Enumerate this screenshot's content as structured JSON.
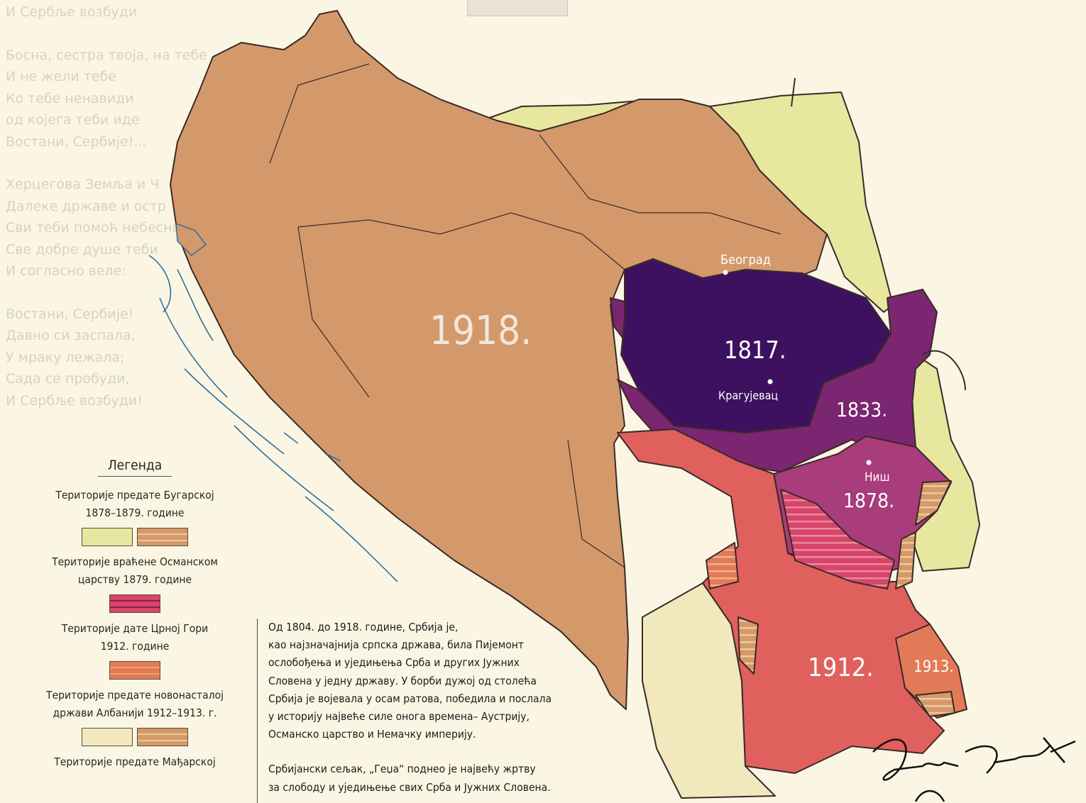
{
  "poem": {
    "lines_top": [
      "И Сербље возбуди"
    ],
    "stanza1": [
      "Босна, сестра твоја, на тебе",
      "И не жели тебе",
      "Ко тебе ненавиди",
      "од којега теби иде",
      "Востани, Сербије!..."
    ],
    "stanza2": [
      "Херцегова Земља и Ч",
      "Далеке државе и остр",
      "Сви теби помоћ небесни",
      "Све добре душе теби",
      "И согласно веле:"
    ],
    "stanza3": [
      "Востани, Сербије!",
      "Давно си заспала,",
      "У мраку лежала;",
      "Сада се пробуди,",
      "И Сербље возбуди!"
    ]
  },
  "map": {
    "regions": [
      {
        "label": "1918.",
        "color": "#d4996b"
      },
      {
        "label": "1817.",
        "color": "#3e1160"
      },
      {
        "label": "1833.",
        "color": "#7b2670"
      },
      {
        "label": "1878.",
        "color": "#a93c7a"
      },
      {
        "label": "1912.",
        "color": "#e0605e"
      },
      {
        "label": "1913.",
        "color": "#e27a57"
      }
    ],
    "cities": [
      "Београд",
      "Крагујевац",
      "Ниш"
    ],
    "colors": {
      "bulgaria": "#e8e7a0",
      "albania": "#f1e9bd",
      "hatch_light": "#f1c99a",
      "border": "#3a2a28",
      "coast": "#2f6f9a"
    }
  },
  "legend": {
    "title": "Легенда",
    "items": [
      {
        "text": "Територије предате Бугарској 1878–1879. године",
        "swatches": [
          "#e8e7a0",
          "hatch:#d4996b"
        ]
      },
      {
        "text": "Територије враћене Османском царству 1879. године",
        "swatches": [
          "hatch:#d8446a"
        ]
      },
      {
        "text": "Територије дате Црној Гори 1912. године",
        "swatches": [
          "hatch:#e27a57"
        ]
      },
      {
        "text": "Територије предате новонасталој држави Албанији 1912–1913. г.",
        "swatches": [
          "#f1e9bd",
          "hatch:#d4996b"
        ]
      },
      {
        "text": "Територије предате Мађарској",
        "swatches": []
      }
    ]
  },
  "text_block": {
    "paragraph1": [
      "Од 1804. до 1918. године, Србија је,",
      "као најзначајнија српска држава, била Пијемонт",
      "ослобођења и уједињења Срба и других Јужних",
      "Словена у једну државу. У борби дужој од столећа",
      "Србија је војевала у осам ратова, победила и послала",
      "у историју највеће силе онога времена– Аустрију,",
      "Османско царство и Немачку империју."
    ],
    "paragraph2": [
      "Србијански сељак, „Геџа“ поднео је највећу жртву",
      "за слободу и уједињење свих Срба и Јужних Словена."
    ]
  },
  "signature": "Душан Тацић"
}
